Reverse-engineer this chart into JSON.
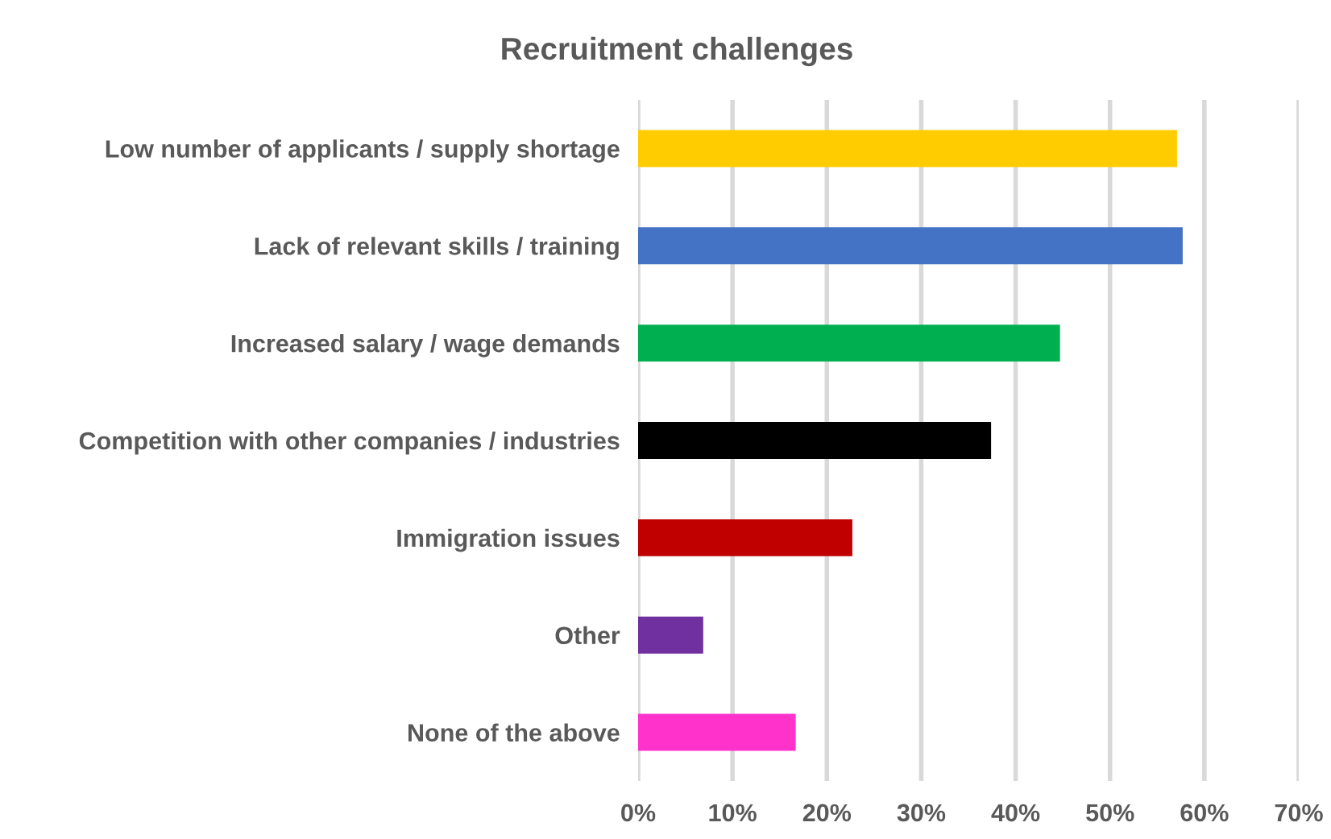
{
  "chart_data": {
    "type": "bar",
    "orientation": "horizontal",
    "title": "Recruitment challenges",
    "categories": [
      "Low number of applicants / supply shortage",
      "Lack of relevant skills / training",
      "Increased salary / wage demands",
      "Competition with other companies / industries",
      "Immigration issues",
      "Other",
      "None of the above"
    ],
    "values": [
      57.1,
      57.7,
      44.7,
      37.4,
      22.7,
      6.9,
      16.7
    ],
    "colors": [
      "#ffcc00",
      "#4472c4",
      "#00b050",
      "#000000",
      "#c00000",
      "#7030a0",
      "#ff33cc"
    ],
    "xlim": [
      0,
      70
    ],
    "xticks": [
      {
        "value": 0,
        "label": "0%"
      },
      {
        "value": 10,
        "label": "10%"
      },
      {
        "value": 20,
        "label": "20%"
      },
      {
        "value": 30,
        "label": "30%"
      },
      {
        "value": 40,
        "label": "40%"
      },
      {
        "value": 50,
        "label": "50%"
      },
      {
        "value": 60,
        "label": "60%"
      },
      {
        "value": 70,
        "label": "70%"
      }
    ],
    "grid": "x",
    "legend": false
  }
}
